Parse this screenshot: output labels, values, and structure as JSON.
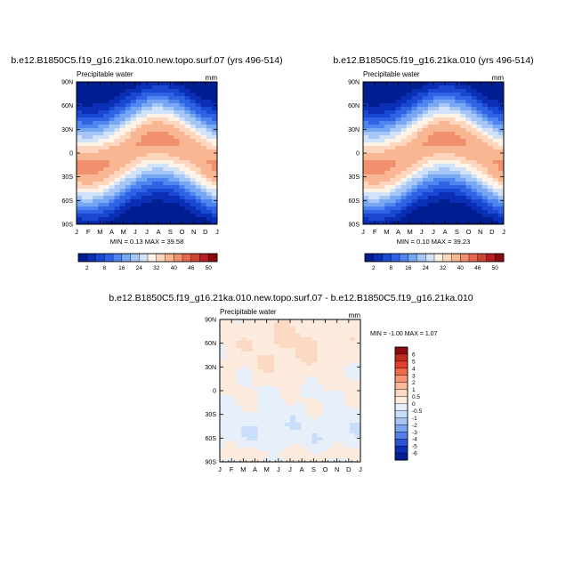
{
  "chart_data": [
    {
      "type": "heatmap",
      "title": "b.e12.B1850C5.f19_g16.21ka.010.new.topo.surf.07 (yrs 496-514)",
      "subtitle": "Precipitable water",
      "units": "mm",
      "x_ticks": [
        "J",
        "F",
        "M",
        "A",
        "M",
        "J",
        "J",
        "A",
        "S",
        "O",
        "N",
        "D",
        "J"
      ],
      "y_ticks": [
        "90N",
        "60N",
        "30N",
        "0",
        "30S",
        "60S",
        "90S"
      ],
      "stats": "MIN =   0.13 MAX =  39.58",
      "colorbar_labels": [
        "2",
        "8",
        "16",
        "24",
        "32",
        "40",
        "46",
        "50"
      ],
      "colors": [
        "#001e91",
        "#0a2fb4",
        "#1b48d2",
        "#2f63e4",
        "#4f85ee",
        "#77a6f3",
        "#a6c7f6",
        "#d1e3f8",
        "#fff2e6",
        "#fdd6bd",
        "#f9b693",
        "#f0906d",
        "#e4694f",
        "#cc4535",
        "#b51f22",
        "#8b0a0e"
      ],
      "field": "absolute"
    },
    {
      "type": "heatmap",
      "title": "b.e12.B1850C5.f19_g16.21ka.010 (yrs 496-514)",
      "subtitle": "Precipitable water",
      "units": "mm",
      "x_ticks": [
        "J",
        "F",
        "M",
        "A",
        "M",
        "J",
        "J",
        "A",
        "S",
        "O",
        "N",
        "D",
        "J"
      ],
      "y_ticks": [
        "90N",
        "60N",
        "30N",
        "0",
        "30S",
        "60S",
        "90S"
      ],
      "stats": "MIN =   0.10 MAX =  39.23",
      "colorbar_labels": [
        "2",
        "8",
        "16",
        "24",
        "32",
        "40",
        "46",
        "50"
      ],
      "colors": [
        "#001e91",
        "#0a2fb4",
        "#1b48d2",
        "#2f63e4",
        "#4f85ee",
        "#77a6f3",
        "#a6c7f6",
        "#d1e3f8",
        "#fff2e6",
        "#fdd6bd",
        "#f9b693",
        "#f0906d",
        "#e4694f",
        "#cc4535",
        "#b51f22",
        "#8b0a0e"
      ],
      "field": "absolute"
    },
    {
      "type": "heatmap",
      "title": "b.e12.B1850C5.f19_g16.21ka.010.new.topo.surf.07 - b.e12.B1850C5.f19_g16.21ka.010",
      "subtitle": "Precipitable water",
      "units": "mm",
      "x_ticks": [
        "J",
        "F",
        "M",
        "A",
        "M",
        "J",
        "J",
        "A",
        "S",
        "O",
        "N",
        "D",
        "J"
      ],
      "y_ticks": [
        "90N",
        "60N",
        "30N",
        "0",
        "30S",
        "60S",
        "90S"
      ],
      "stats": "MIN =  -1.00 MAX =   1.07",
      "colorbar_labels": [
        "6",
        "5",
        "4",
        "3",
        "2",
        "1",
        "0.5",
        "0",
        "-0.5",
        "-1",
        "-2",
        "-3",
        "-4",
        "-5",
        "-6"
      ],
      "colors": [
        "#8b0a0e",
        "#c02a1f",
        "#e0412a",
        "#ef6a46",
        "#f59574",
        "#f9b99a",
        "#fcd9c3",
        "#fdebdd",
        "#e7f0fa",
        "#c9defa",
        "#a7c6f4",
        "#7ca6ee",
        "#5480e8",
        "#2b55d8",
        "#0a2fb4",
        "#001e91"
      ],
      "field": "difference"
    }
  ]
}
